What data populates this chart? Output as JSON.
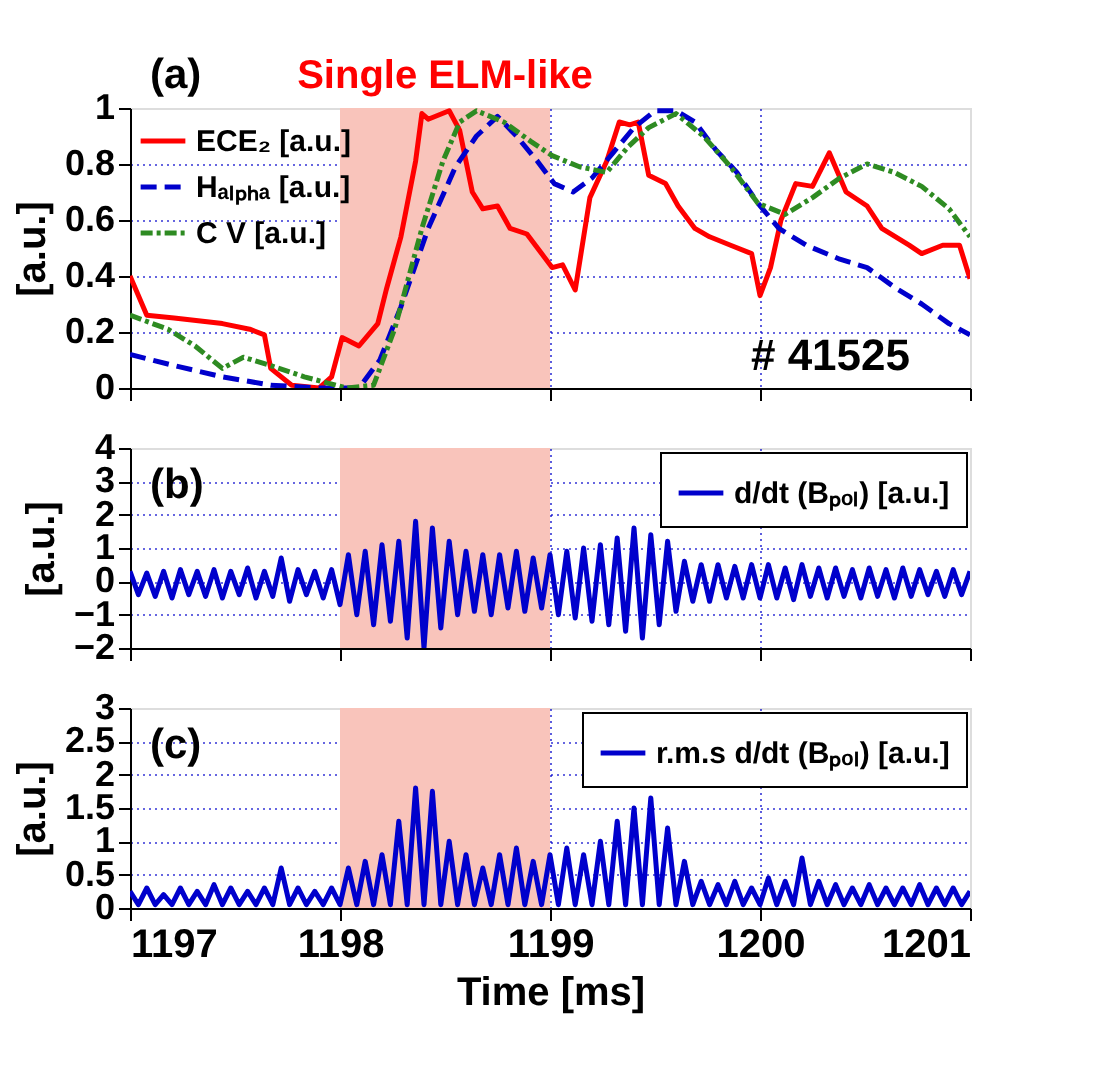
{
  "chart_data": [
    {
      "type": "line",
      "ylabel": "[a.u.]",
      "xlim": [
        1197,
        1201
      ],
      "xticks": [
        1197,
        1198,
        1199,
        1200,
        1201
      ],
      "ylim": [
        0,
        1
      ],
      "yticks": [
        0,
        0.2,
        0.4,
        0.6,
        0.8,
        1
      ],
      "grid": true,
      "legend": "top left",
      "tick_labels": "y",
      "bands": [
        {
          "axis": "x",
          "from": 1198,
          "to": 1199,
          "label": "Single ELM-like",
          "color": "#f9c4bb"
        }
      ],
      "annotations": [
        "(a)",
        "# 41525"
      ],
      "series": [
        {
          "name": "ECE₂ [a.u.]",
          "color": "#ff0000",
          "line_style": "solid",
          "x": [
            1197.0,
            1197.08,
            1197.21,
            1197.44,
            1197.57,
            1197.64,
            1197.67,
            1197.77,
            1197.9,
            1197.96,
            1198.01,
            1198.09,
            1198.18,
            1198.22,
            1198.29,
            1198.36,
            1198.39,
            1198.42,
            1198.52,
            1198.57,
            1198.63,
            1198.68,
            1198.75,
            1198.81,
            1198.89,
            1198.96,
            1199.01,
            1199.06,
            1199.12,
            1199.19,
            1199.27,
            1199.33,
            1199.38,
            1199.42,
            1199.47,
            1199.55,
            1199.61,
            1199.69,
            1199.76,
            1199.86,
            1199.96,
            1200.0,
            1200.05,
            1200.1,
            1200.17,
            1200.25,
            1200.33,
            1200.41,
            1200.51,
            1200.58,
            1200.71,
            1200.77,
            1200.87,
            1200.95,
            1201.0
          ],
          "values": [
            0.4,
            0.26,
            0.25,
            0.23,
            0.21,
            0.19,
            0.07,
            0.01,
            0,
            0.04,
            0.18,
            0.15,
            0.23,
            0.35,
            0.54,
            0.81,
            0.98,
            0.96,
            0.99,
            0.92,
            0.7,
            0.64,
            0.65,
            0.57,
            0.55,
            0.48,
            0.43,
            0.44,
            0.35,
            0.68,
            0.81,
            0.95,
            0.94,
            0.95,
            0.76,
            0.73,
            0.65,
            0.57,
            0.54,
            0.51,
            0.48,
            0.33,
            0.43,
            0.6,
            0.73,
            0.72,
            0.84,
            0.7,
            0.65,
            0.57,
            0.51,
            0.48,
            0.51,
            0.51,
            0.39
          ]
        },
        {
          "name": "Hₐₗₚₕₐ [a.u.]",
          "color": "#0000cc",
          "line_style": "dashed",
          "x": [
            1197.0,
            1197.21,
            1197.44,
            1197.67,
            1197.9,
            1198.09,
            1198.19,
            1198.29,
            1198.42,
            1198.55,
            1198.65,
            1198.75,
            1198.84,
            1198.94,
            1199.02,
            1199.11,
            1199.2,
            1199.3,
            1199.4,
            1199.5,
            1199.6,
            1199.69,
            1199.79,
            1199.89,
            1199.99,
            1200.09,
            1200.22,
            1200.38,
            1200.51,
            1200.64,
            1200.77,
            1200.9,
            1201.0
          ],
          "values": [
            0.12,
            0.08,
            0.04,
            0.01,
            0,
            0,
            0.1,
            0.29,
            0.57,
            0.79,
            0.9,
            0.97,
            0.9,
            0.81,
            0.73,
            0.7,
            0.75,
            0.84,
            0.93,
            0.99,
            0.99,
            0.95,
            0.85,
            0.77,
            0.66,
            0.57,
            0.51,
            0.46,
            0.43,
            0.36,
            0.3,
            0.23,
            0.19
          ]
        },
        {
          "name": "C V [a.u.]",
          "color": "#2e8b22",
          "line_style": "dotted",
          "x": [
            1197.0,
            1197.18,
            1197.31,
            1197.44,
            1197.54,
            1197.67,
            1197.83,
            1198.03,
            1198.16,
            1198.26,
            1198.39,
            1198.49,
            1198.57,
            1198.65,
            1198.78,
            1198.91,
            1199.01,
            1199.14,
            1199.27,
            1199.37,
            1199.47,
            1199.6,
            1199.73,
            1199.86,
            1199.99,
            1200.12,
            1200.25,
            1200.38,
            1200.51,
            1200.64,
            1200.77,
            1200.9,
            1201.0
          ],
          "values": [
            0.26,
            0.21,
            0.15,
            0.07,
            0.11,
            0.08,
            0.04,
            0,
            0.01,
            0.21,
            0.57,
            0.81,
            0.95,
            0.99,
            0.95,
            0.88,
            0.83,
            0.79,
            0.77,
            0.86,
            0.93,
            0.98,
            0.9,
            0.79,
            0.66,
            0.62,
            0.68,
            0.75,
            0.8,
            0.77,
            0.72,
            0.64,
            0.54
          ]
        }
      ]
    },
    {
      "type": "line",
      "ylabel": "[a.u.]",
      "xlim": [
        1197,
        1201
      ],
      "xticks": [
        1197,
        1198,
        1199,
        1200,
        1201
      ],
      "ylim": [
        -2,
        4
      ],
      "yticks": [
        -2,
        -1,
        0,
        1,
        2,
        3,
        4
      ],
      "grid": true,
      "legend": "top right",
      "tick_labels": "y",
      "bands": [
        {
          "axis": "x",
          "from": 1198,
          "to": 1199,
          "color": "#f9c4bb"
        }
      ],
      "annotations": [
        "(b)"
      ],
      "x": [
        1197,
        1197.04,
        1197.08,
        1197.12,
        1197.16,
        1197.2,
        1197.24,
        1197.28,
        1197.32,
        1197.36,
        1197.4,
        1197.44,
        1197.48,
        1197.52,
        1197.56,
        1197.6,
        1197.64,
        1197.68,
        1197.72,
        1197.76,
        1197.8,
        1197.84,
        1197.88,
        1197.92,
        1197.96,
        1198,
        1198.04,
        1198.08,
        1198.12,
        1198.16,
        1198.2,
        1198.24,
        1198.28,
        1198.32,
        1198.36,
        1198.4,
        1198.44,
        1198.48,
        1198.52,
        1198.56,
        1198.6,
        1198.64,
        1198.68,
        1198.72,
        1198.76,
        1198.8,
        1198.84,
        1198.88,
        1198.92,
        1198.96,
        1199,
        1199.04,
        1199.08,
        1199.12,
        1199.16,
        1199.2,
        1199.24,
        1199.28,
        1199.32,
        1199.36,
        1199.4,
        1199.44,
        1199.48,
        1199.52,
        1199.56,
        1199.6,
        1199.64,
        1199.68,
        1199.72,
        1199.76,
        1199.8,
        1199.84,
        1199.88,
        1199.92,
        1199.96,
        1200,
        1200.04,
        1200.08,
        1200.12,
        1200.16,
        1200.2,
        1200.24,
        1200.28,
        1200.32,
        1200.36,
        1200.4,
        1200.44,
        1200.48,
        1200.52,
        1200.56,
        1200.6,
        1200.64,
        1200.68,
        1200.72,
        1200.76,
        1200.8,
        1200.84,
        1200.88,
        1200.92,
        1200.96,
        1201
      ],
      "series": [
        {
          "name": "d/dt (Bₚₒₗ) [a.u.]",
          "color": "#0000cc",
          "line_style": "solid",
          "values": [
            0.3,
            -0.4,
            0.25,
            -0.45,
            0.3,
            -0.5,
            0.35,
            -0.4,
            0.3,
            -0.45,
            0.35,
            -0.5,
            0.3,
            -0.4,
            0.4,
            -0.5,
            0.3,
            -0.45,
            0.7,
            -0.6,
            0.35,
            -0.4,
            0.3,
            -0.5,
            0.35,
            -0.7,
            0.8,
            -1.0,
            0.9,
            -1.3,
            1.1,
            -1.2,
            1.2,
            -1.7,
            1.8,
            -2.0,
            1.6,
            -1.4,
            1.2,
            -1.0,
            0.9,
            -0.9,
            0.8,
            -1.0,
            0.8,
            -0.8,
            0.9,
            -0.9,
            0.7,
            -0.8,
            0.8,
            -1.0,
            0.9,
            -1.1,
            1.0,
            -1.2,
            1.1,
            -1.3,
            1.3,
            -1.5,
            1.6,
            -1.7,
            1.4,
            -1.3,
            1.2,
            -0.9,
            0.6,
            -0.6,
            0.5,
            -0.6,
            0.5,
            -0.5,
            0.45,
            -0.5,
            0.5,
            -0.5,
            0.5,
            -0.5,
            0.4,
            -0.55,
            0.5,
            -0.45,
            0.4,
            -0.5,
            0.4,
            -0.45,
            0.35,
            -0.5,
            0.4,
            -0.45,
            0.35,
            -0.5,
            0.4,
            -0.45,
            0.35,
            -0.4,
            0.3,
            -0.45,
            0.35,
            -0.4,
            0.3
          ]
        }
      ]
    },
    {
      "type": "line",
      "xlabel": "Time [ms]",
      "ylabel": "[a.u.]",
      "xlim": [
        1197,
        1201
      ],
      "xticks": [
        1197,
        1198,
        1199,
        1200,
        1201
      ],
      "ylim": [
        0,
        3
      ],
      "yticks": [
        0,
        0.5,
        1,
        1.5,
        2,
        2.5,
        3
      ],
      "grid": true,
      "legend": "top right",
      "bands": [
        {
          "axis": "x",
          "from": 1198,
          "to": 1199,
          "color": "#f9c4bb"
        }
      ],
      "annotations": [
        "(c)"
      ],
      "x": [
        1197,
        1197.04,
        1197.08,
        1197.12,
        1197.16,
        1197.2,
        1197.24,
        1197.28,
        1197.32,
        1197.36,
        1197.4,
        1197.44,
        1197.48,
        1197.52,
        1197.56,
        1197.6,
        1197.64,
        1197.68,
        1197.72,
        1197.76,
        1197.8,
        1197.84,
        1197.88,
        1197.92,
        1197.96,
        1198,
        1198.04,
        1198.08,
        1198.12,
        1198.16,
        1198.2,
        1198.24,
        1198.28,
        1198.32,
        1198.36,
        1198.4,
        1198.44,
        1198.48,
        1198.52,
        1198.56,
        1198.6,
        1198.64,
        1198.68,
        1198.72,
        1198.76,
        1198.8,
        1198.84,
        1198.88,
        1198.92,
        1198.96,
        1199,
        1199.04,
        1199.08,
        1199.12,
        1199.16,
        1199.2,
        1199.24,
        1199.28,
        1199.32,
        1199.36,
        1199.4,
        1199.44,
        1199.48,
        1199.52,
        1199.56,
        1199.6,
        1199.64,
        1199.68,
        1199.72,
        1199.76,
        1199.8,
        1199.84,
        1199.88,
        1199.92,
        1199.96,
        1200,
        1200.04,
        1200.08,
        1200.12,
        1200.16,
        1200.2,
        1200.24,
        1200.28,
        1200.32,
        1200.36,
        1200.4,
        1200.44,
        1200.48,
        1200.52,
        1200.56,
        1200.6,
        1200.64,
        1200.68,
        1200.72,
        1200.76,
        1200.8,
        1200.84,
        1200.88,
        1200.92,
        1200.96,
        1201
      ],
      "series": [
        {
          "name": "r.m.s d/dt (Bₚₒₗ) [a.u.]",
          "color": "#0000cc",
          "line_style": "solid",
          "values": [
            0.25,
            0.05,
            0.3,
            0.05,
            0.2,
            0.05,
            0.3,
            0.05,
            0.25,
            0.05,
            0.35,
            0.05,
            0.3,
            0.05,
            0.25,
            0.05,
            0.3,
            0.05,
            0.6,
            0.05,
            0.3,
            0.05,
            0.25,
            0.05,
            0.3,
            0.05,
            0.6,
            0.05,
            0.7,
            0.05,
            0.8,
            0.05,
            1.3,
            0.05,
            1.8,
            0.05,
            1.75,
            0.05,
            1.0,
            0.05,
            0.8,
            0.05,
            0.6,
            0.05,
            0.8,
            0.05,
            0.9,
            0.05,
            0.7,
            0.05,
            0.8,
            0.05,
            0.9,
            0.05,
            0.8,
            0.05,
            1.0,
            0.05,
            1.3,
            0.05,
            1.5,
            0.05,
            1.65,
            0.05,
            1.2,
            0.05,
            0.7,
            0.05,
            0.4,
            0.05,
            0.35,
            0.05,
            0.4,
            0.05,
            0.3,
            0.05,
            0.45,
            0.05,
            0.4,
            0.05,
            0.75,
            0.05,
            0.4,
            0.05,
            0.35,
            0.05,
            0.3,
            0.05,
            0.35,
            0.05,
            0.3,
            0.05,
            0.3,
            0.05,
            0.35,
            0.05,
            0.3,
            0.05,
            0.3,
            0.05,
            0.25
          ]
        }
      ]
    }
  ]
}
